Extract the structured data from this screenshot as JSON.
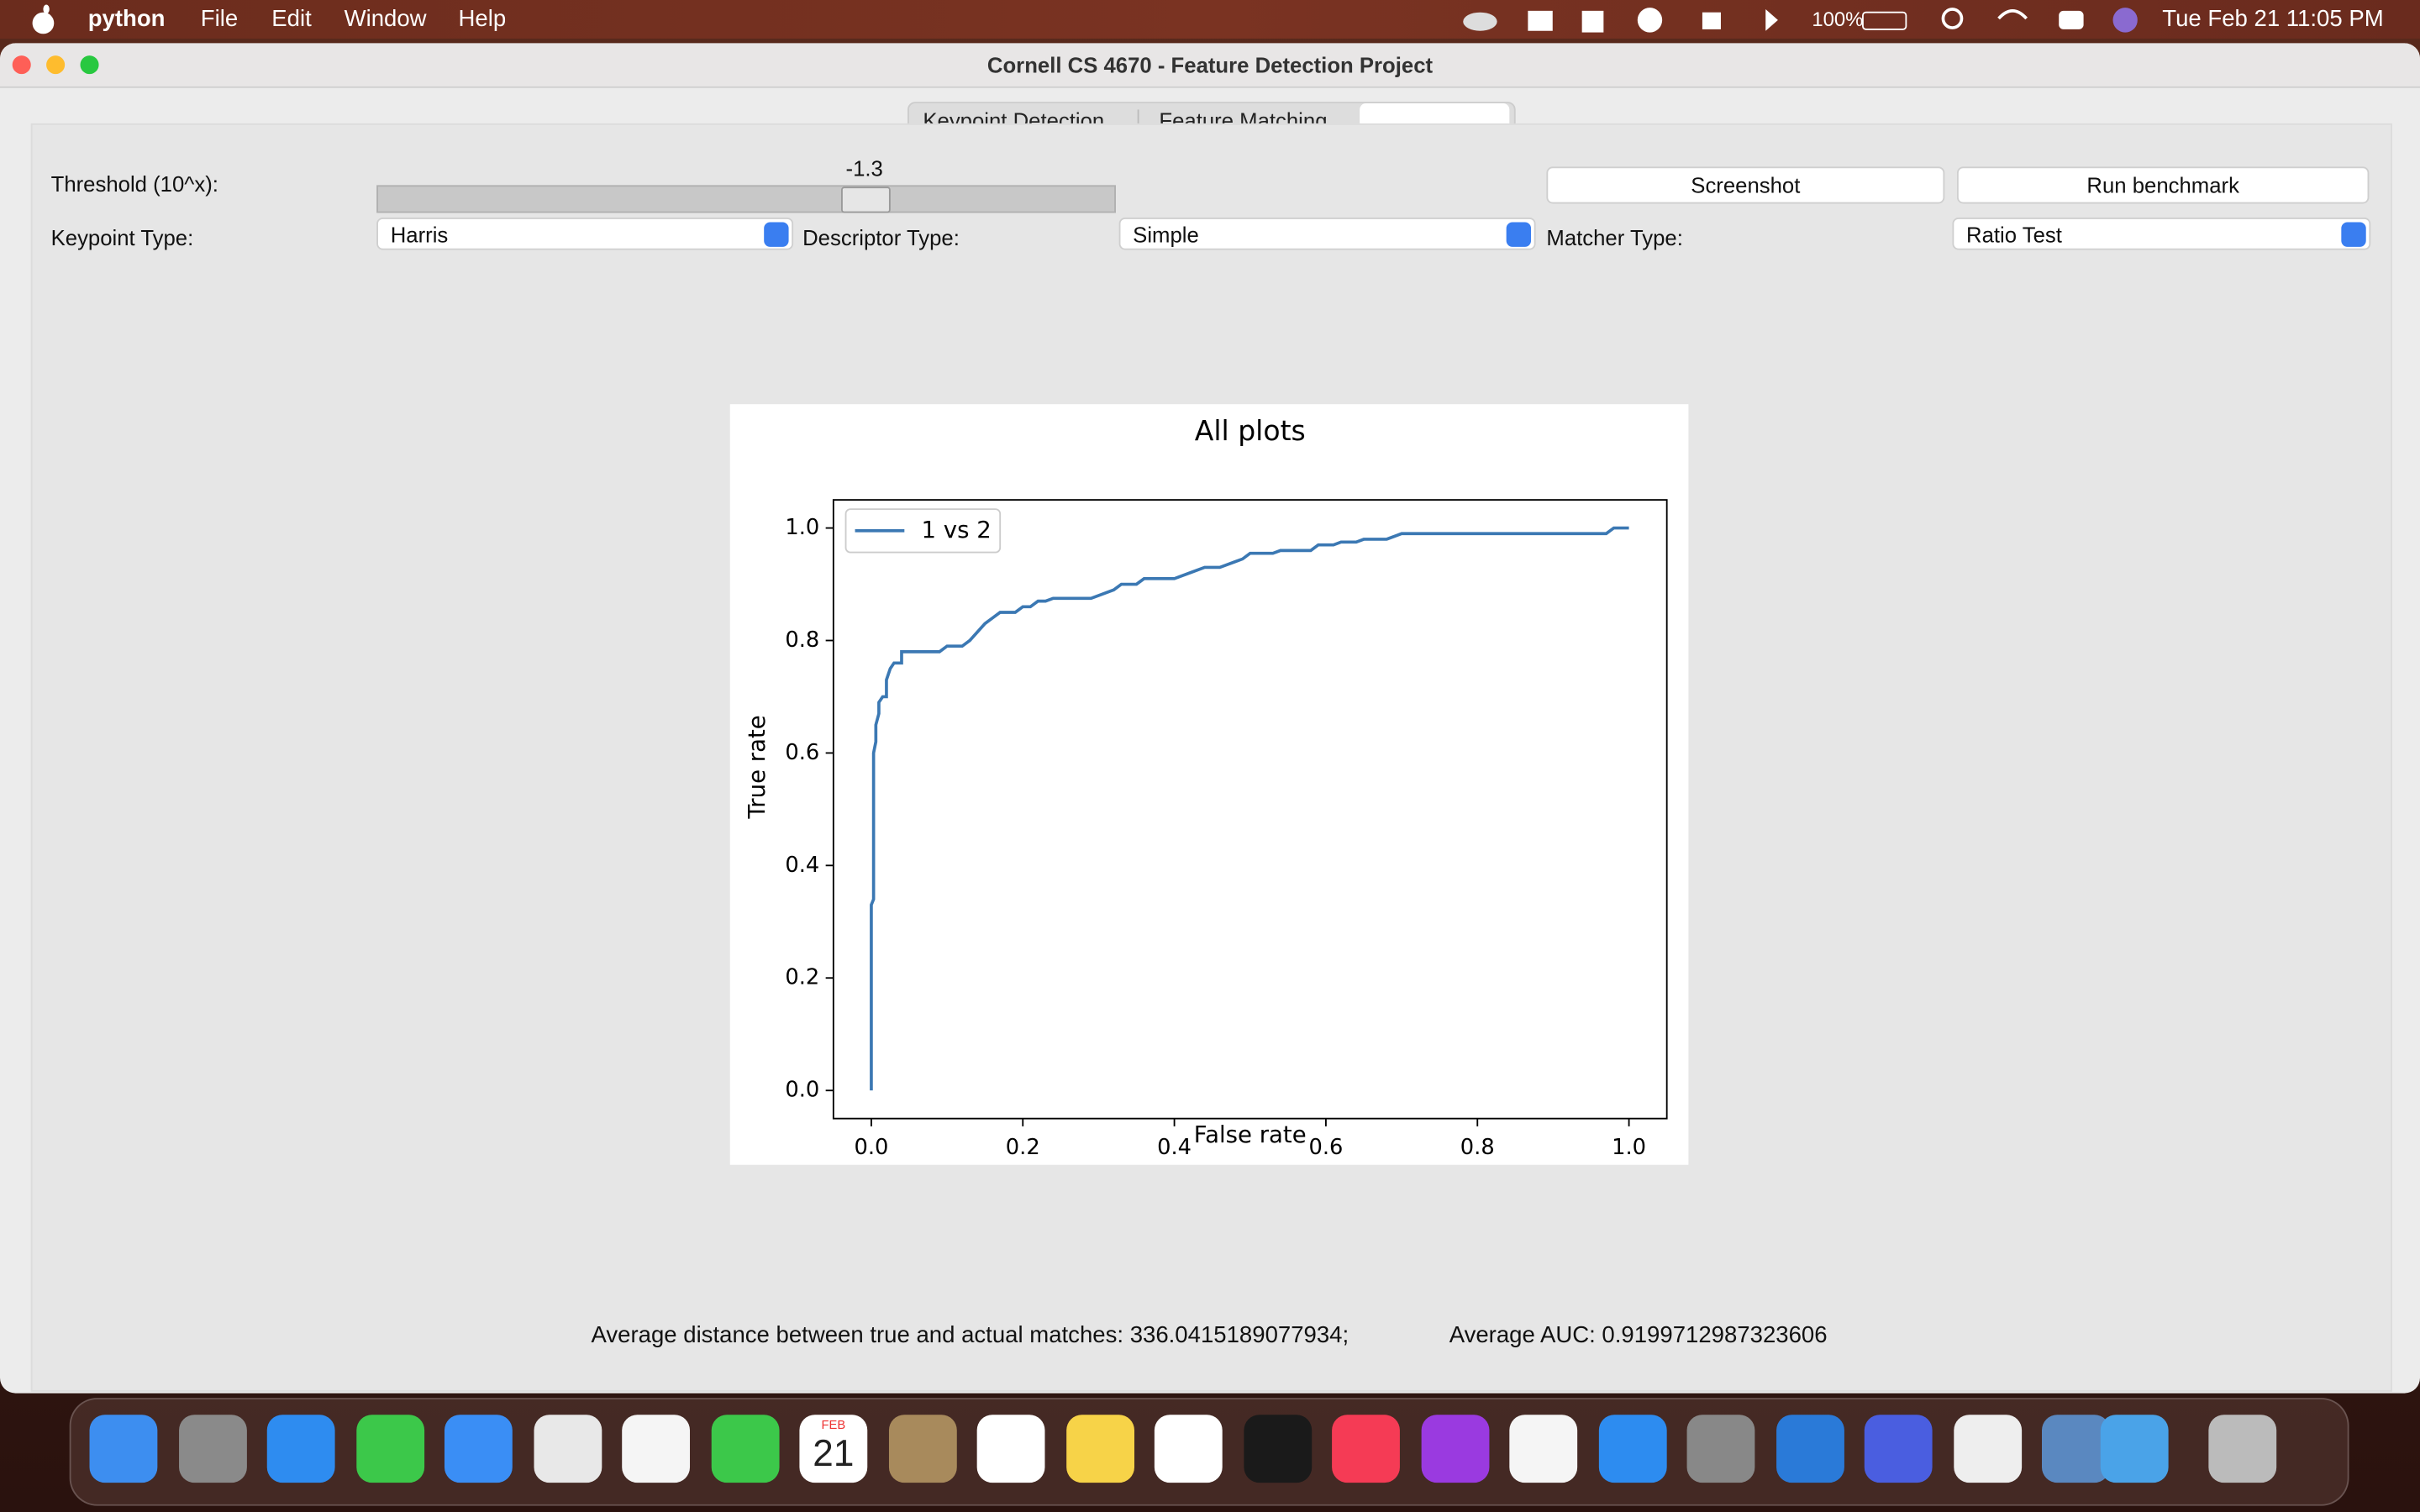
{
  "menu_bar": {
    "app": "python",
    "items": [
      "File",
      "Edit",
      "Window",
      "Help"
    ],
    "battery": "100%",
    "datetime": "Tue Feb 21  11:05 PM"
  },
  "window": {
    "title": "Cornell CS 4670 - Feature Detection Project",
    "tabs": [
      "Keypoint Detection",
      "Feature Matching"
    ],
    "threshold_label": "Threshold (10^x):",
    "threshold_value": -1.3,
    "buttons": [
      "Screenshot",
      "Run benchmark"
    ],
    "keypoint_label": "Keypoint Type:",
    "keypoint_value": "Harris",
    "descriptor_label": "Descriptor Type:",
    "descriptor_value": "Simple",
    "matcher_label": "Matcher Type:",
    "matcher_value": "Ratio Test",
    "status_distance": "Average distance between true and actual matches: 336.0415189077934;",
    "status_auc": "Average AUC: 0.9199712987323606"
  },
  "chart_data": {
    "type": "line",
    "title": "All plots",
    "xlabel": "False rate",
    "ylabel": "True rate",
    "x": [
      0,
      0,
      0.003,
      0.003,
      0.006,
      0.006,
      0.01,
      0.01,
      0.015,
      0.02,
      0.02,
      0.025,
      0.03,
      0.04,
      0.04,
      0.05,
      0.09,
      0.1,
      0.12,
      0.13,
      0.15,
      0.16,
      0.17,
      0.19,
      0.2,
      0.21,
      0.22,
      0.23,
      0.24,
      0.29,
      0.32,
      0.33,
      0.35,
      0.36,
      0.4,
      0.42,
      0.44,
      0.46,
      0.48,
      0.49,
      0.5,
      0.53,
      0.54,
      0.58,
      0.59,
      0.61,
      0.62,
      0.64,
      0.65,
      0.68,
      0.7,
      0.72,
      0.97,
      0.98,
      1.0
    ],
    "series": [
      {
        "name": "1 vs 2",
        "color": "#3b78b3",
        "values": [
          0,
          0.33,
          0.34,
          0.6,
          0.62,
          0.65,
          0.67,
          0.69,
          0.7,
          0.7,
          0.73,
          0.75,
          0.76,
          0.76,
          0.78,
          0.78,
          0.78,
          0.79,
          0.79,
          0.8,
          0.83,
          0.84,
          0.85,
          0.85,
          0.86,
          0.86,
          0.87,
          0.87,
          0.875,
          0.875,
          0.89,
          0.9,
          0.9,
          0.91,
          0.91,
          0.92,
          0.93,
          0.93,
          0.94,
          0.945,
          0.955,
          0.955,
          0.96,
          0.96,
          0.97,
          0.97,
          0.975,
          0.975,
          0.98,
          0.98,
          0.99,
          0.99,
          0.99,
          1.0,
          1.0
        ]
      }
    ],
    "xlim": [
      -0.05,
      1.05
    ],
    "ylim": [
      -0.05,
      1.05
    ],
    "xticks": [
      {
        "value": 0,
        "label": "0.0"
      },
      0.2,
      0.4,
      0.6,
      0.8,
      {
        "value": 1,
        "label": "1.0"
      }
    ],
    "yticks": [
      {
        "value": 0,
        "label": "0.0"
      },
      0.2,
      0.4,
      0.6,
      0.8,
      {
        "value": 1,
        "label": "1.0"
      }
    ],
    "legend": "upper left"
  },
  "dock": {
    "calendar_month": "FEB",
    "calendar_day": "21"
  }
}
